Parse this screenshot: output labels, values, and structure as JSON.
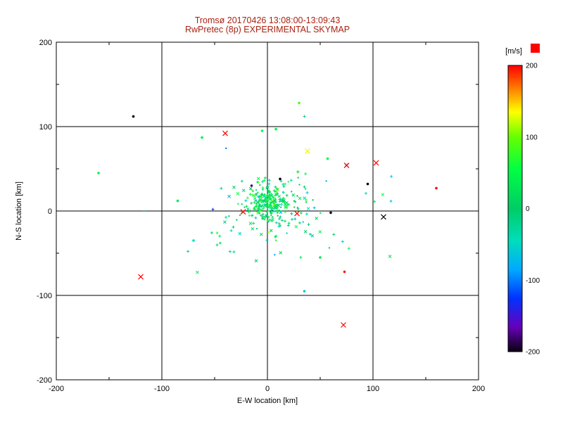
{
  "title": {
    "line1": "Tromsø 20170426 13:08:00-13:09:43",
    "line2": "RwPretec (8p) EXPERIMENTAL SKYMAP",
    "color": "#aa2211"
  },
  "axes": {
    "xlabel": "E-W location [km]",
    "ylabel": "N-S location [km]",
    "xlim": [
      -200,
      200
    ],
    "ylim": [
      -200,
      200
    ],
    "xticks": [
      -200,
      -100,
      0,
      100,
      200
    ],
    "yticks": [
      -200,
      -100,
      0,
      100,
      200
    ],
    "minor_step": 50,
    "grid_values": [
      -100,
      0,
      100
    ]
  },
  "colorbar": {
    "unit_label": "[m/s]",
    "ticks": [
      200,
      100,
      0,
      -100,
      -200
    ],
    "min": -200,
    "max": 200,
    "top_swatch_color": "#ff0000",
    "stops": [
      [
        200,
        "#ff0000"
      ],
      [
        165,
        "#ff8800"
      ],
      [
        135,
        "#ffff00"
      ],
      [
        100,
        "#66ff00"
      ],
      [
        55,
        "#00ff44"
      ],
      [
        0,
        "#00cc66"
      ],
      [
        -45,
        "#00ddbb"
      ],
      [
        -85,
        "#00aaff"
      ],
      [
        -125,
        "#0033ff"
      ],
      [
        -165,
        "#6600bb"
      ],
      [
        -200,
        "#0a0010"
      ]
    ]
  },
  "chart_data": {
    "type": "scatter",
    "title": "Tromsø 20170426 13:08:00-13:09:43 — RwPretec (8p) EXPERIMENTAL SKYMAP",
    "xlabel": "E-W location [km]",
    "ylabel": "N-S location [km]",
    "xlim": [
      -200,
      200
    ],
    "ylim": [
      -200,
      200
    ],
    "value_unit": "m/s",
    "value_range": [
      -200,
      200
    ],
    "description": "Dense cluster of echo locations near the origin (mostly 0 to +60 m/s, green; some negative, cyan) with sparse outliers; point value mapped to rainbow colorbar.",
    "outliers": [
      [
        -127,
        112,
        -200,
        "dot"
      ],
      [
        -160,
        45,
        45,
        "dot"
      ],
      [
        -120,
        -78,
        200,
        "x"
      ],
      [
        -40,
        92,
        200,
        "x"
      ],
      [
        -62,
        87,
        40,
        "dot"
      ],
      [
        -5,
        95,
        55,
        "dot"
      ],
      [
        8,
        97,
        45,
        "dot"
      ],
      [
        30,
        128,
        85,
        "dot"
      ],
      [
        38,
        71,
        130,
        "x"
      ],
      [
        57,
        62,
        50,
        "dot"
      ],
      [
        75,
        54,
        200,
        "x"
      ],
      [
        103,
        57,
        200,
        "x"
      ],
      [
        160,
        27,
        200,
        "dot"
      ],
      [
        110,
        -7,
        -200,
        "x"
      ],
      [
        60,
        -2,
        -200,
        "dot"
      ],
      [
        95,
        32,
        -200,
        "dot"
      ],
      [
        28,
        -3,
        200,
        "x"
      ],
      [
        -23,
        -1,
        200,
        "x"
      ],
      [
        72,
        -135,
        200,
        "x"
      ],
      [
        73,
        -72,
        195,
        "dot"
      ],
      [
        35,
        -95,
        -60,
        "dot"
      ],
      [
        50,
        -55,
        30,
        "dot"
      ],
      [
        -70,
        -35,
        -45,
        "dot"
      ],
      [
        -85,
        12,
        35,
        "dot"
      ],
      [
        12,
        38,
        -200,
        "dot"
      ],
      [
        -15,
        30,
        -180,
        "dot"
      ]
    ],
    "clusters": [
      {
        "count": 170,
        "cx": 0,
        "cy": 10,
        "sx": 10,
        "sy": 9,
        "v_mean": 25,
        "v_std": 30
      },
      {
        "count": 120,
        "cx": 3,
        "cy": 4,
        "sx": 22,
        "sy": 17,
        "v_mean": 5,
        "v_std": 40
      },
      {
        "count": 55,
        "cx": 5,
        "cy": -6,
        "sx": 45,
        "sy": 36,
        "v_mean": -5,
        "v_std": 55
      }
    ],
    "seed": 20170426
  }
}
